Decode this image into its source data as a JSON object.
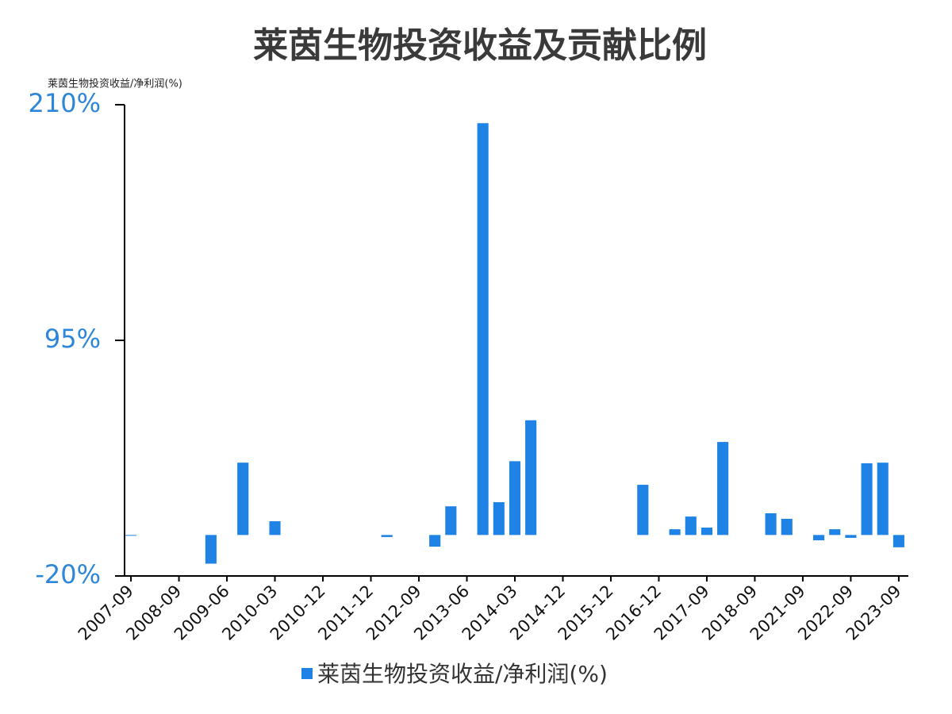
{
  "chart_data": {
    "type": "bar",
    "title": "莱茵生物投资收益及贡献比例",
    "y_label": "莱茵生物投资收益/净利润(%)",
    "categories": [
      "2007-09",
      null,
      null,
      "2008-09",
      null,
      null,
      "2009-06",
      null,
      null,
      "2010-03",
      null,
      null,
      "2010-12",
      null,
      null,
      "2011-12",
      null,
      null,
      "2012-09",
      null,
      null,
      "2013-06",
      null,
      null,
      "2014-03",
      null,
      null,
      "2014-12",
      null,
      null,
      "2015-12",
      null,
      null,
      "2016-12",
      null,
      null,
      "2017-09",
      null,
      null,
      "2018-09",
      null,
      null,
      "2021-09",
      null,
      null,
      "2022-09",
      null,
      null,
      "2023-09"
    ],
    "series": [
      {
        "name": "莱茵生物投资收益/净利润(%)",
        "color": "#1f83e6",
        "values": [
          0,
          null,
          null,
          null,
          null,
          -14,
          null,
          35.3,
          null,
          6.7,
          null,
          null,
          null,
          null,
          null,
          null,
          -1,
          null,
          null,
          -5.7,
          14,
          null,
          201,
          16,
          36,
          56,
          null,
          null,
          null,
          null,
          null,
          null,
          24.5,
          null,
          2.8,
          9,
          3.6,
          45.4,
          null,
          null,
          10.6,
          7.9,
          null,
          -2.6,
          2.8,
          -1.4,
          35,
          35.3,
          -6
        ]
      }
    ],
    "ylim": [
      -20,
      210
    ],
    "yticks": [
      {
        "value": -20,
        "label": "-20%"
      },
      {
        "value": 95,
        "label": "95%"
      },
      {
        "value": 210,
        "label": "210%"
      }
    ],
    "grid": false,
    "legend": "bottom"
  }
}
